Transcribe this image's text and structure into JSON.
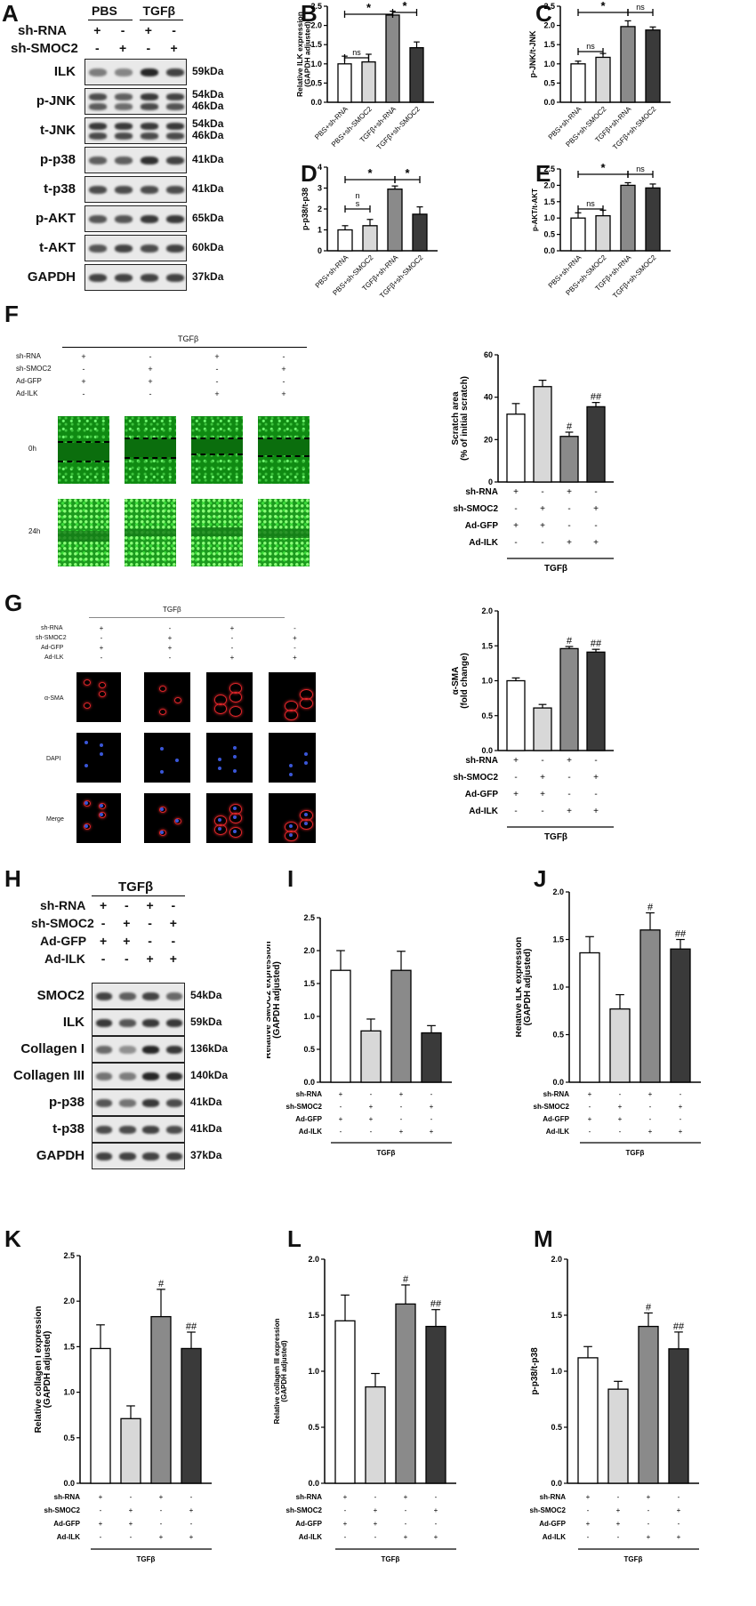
{
  "panel_labels": {
    "A": "A",
    "B": "B",
    "C": "C",
    "D": "D",
    "E": "E",
    "F": "F",
    "G": "G",
    "H": "H",
    "I": "I",
    "J": "J",
    "K": "K",
    "L": "L",
    "M": "M"
  },
  "panelA": {
    "groups": [
      "PBS",
      "TGFβ"
    ],
    "rows": [
      {
        "name": "sh-RNA",
        "signs": [
          "+",
          "-",
          "+",
          "-"
        ]
      },
      {
        "name": "sh-SMOC2",
        "signs": [
          "-",
          "+",
          "-",
          "+"
        ]
      }
    ],
    "blots": [
      {
        "name": "ILK",
        "kda": "59kDa",
        "kda2": ""
      },
      {
        "name": "p-JNK",
        "kda": "54kDa",
        "kda2": "46kDa"
      },
      {
        "name": "t-JNK",
        "kda": "54kDa",
        "kda2": "46kDa"
      },
      {
        "name": "p-p38",
        "kda": "41kDa",
        "kda2": ""
      },
      {
        "name": "t-p38",
        "kda": "41kDa",
        "kda2": ""
      },
      {
        "name": "p-AKT",
        "kda": "65kDa",
        "kda2": ""
      },
      {
        "name": "t-AKT",
        "kda": "60kDa",
        "kda2": ""
      },
      {
        "name": "GAPDH",
        "kda": "37kDa",
        "kda2": ""
      }
    ]
  },
  "panelF": {
    "title": "TGFβ",
    "rows": [
      {
        "name": "sh-RNA",
        "signs": [
          "+",
          "-",
          "+",
          "-"
        ]
      },
      {
        "name": "sh-SMOC2",
        "signs": [
          "-",
          "+",
          "-",
          "+"
        ]
      },
      {
        "name": "Ad-GFP",
        "signs": [
          "+",
          "+",
          "-",
          "-"
        ]
      },
      {
        "name": "Ad-ILK",
        "signs": [
          "-",
          "-",
          "+",
          "+"
        ]
      }
    ],
    "times": [
      "0h",
      "24h"
    ]
  },
  "panelG": {
    "title": "TGFβ",
    "rows": [
      {
        "name": "sh-RNA",
        "signs": [
          "+",
          "-",
          "+",
          "-"
        ]
      },
      {
        "name": "sh-SMOC2",
        "signs": [
          "-",
          "+",
          "-",
          "+"
        ]
      },
      {
        "name": "Ad-GFP",
        "signs": [
          "+",
          "+",
          "-",
          "-"
        ]
      },
      {
        "name": "Ad-ILK",
        "signs": [
          "-",
          "-",
          "+",
          "+"
        ]
      }
    ],
    "stains": [
      "α-SMA",
      "DAPI",
      "Merge"
    ]
  },
  "panelH": {
    "title": "TGFβ",
    "rows": [
      {
        "name": "sh-RNA",
        "signs": [
          "+",
          "-",
          "+",
          "-"
        ]
      },
      {
        "name": "sh-SMOC2",
        "signs": [
          "-",
          "+",
          "-",
          "+"
        ]
      },
      {
        "name": "Ad-GFP",
        "signs": [
          "+",
          "+",
          "-",
          "-"
        ]
      },
      {
        "name": "Ad-ILK",
        "signs": [
          "-",
          "-",
          "+",
          "+"
        ]
      }
    ],
    "blots": [
      {
        "name": "SMOC2",
        "kda": "54kDa"
      },
      {
        "name": "ILK",
        "kda": "59kDa"
      },
      {
        "name": "Collagen I",
        "kda": "136kDa"
      },
      {
        "name": "Collagen III",
        "kda": "140kDa"
      },
      {
        "name": "p-p38",
        "kda": "41kDa"
      },
      {
        "name": "t-p38",
        "kda": "41kDa"
      },
      {
        "name": "GAPDH",
        "kda": "37kDa"
      }
    ]
  },
  "chart_data": [
    {
      "id": "B",
      "type": "bar",
      "ylabel": "Relative ILK expression\n(GAPDH adjusted)",
      "ylim": [
        0,
        2.5
      ],
      "yticks": [
        0,
        0.5,
        1.0,
        1.5,
        2.0,
        2.5
      ],
      "categories": [
        "PBS+sh-RNA",
        "PBS+sh-SMOC2",
        "TGFβ+sh-RNA",
        "TGFβ+sh-SMOC2"
      ],
      "values": [
        1.0,
        1.05,
        2.27,
        1.42
      ],
      "errors": [
        0.2,
        0.2,
        0.1,
        0.15
      ],
      "annotations": [
        {
          "from": 0,
          "to": 1,
          "text": "ns"
        },
        {
          "from": 0,
          "to": 2,
          "text": "*"
        },
        {
          "from": 2,
          "to": 3,
          "text": "*"
        }
      ]
    },
    {
      "id": "C",
      "type": "bar",
      "ylabel": "p-JNK/t-JNK",
      "ylim": [
        0,
        2.5
      ],
      "yticks": [
        0,
        0.5,
        1.0,
        1.5,
        2.0,
        2.5
      ],
      "categories": [
        "PBS+sh-RNA",
        "PBS+sh-SMOC2",
        "TGFβ+sh-RNA",
        "TGFβ+sh-SMOC2"
      ],
      "values": [
        1.0,
        1.17,
        1.97,
        1.88
      ],
      "errors": [
        0.07,
        0.1,
        0.15,
        0.08
      ],
      "annotations": [
        {
          "from": 0,
          "to": 1,
          "text": "ns"
        },
        {
          "from": 0,
          "to": 2,
          "text": "*"
        },
        {
          "from": 2,
          "to": 3,
          "text": "ns"
        }
      ]
    },
    {
      "id": "D",
      "type": "bar",
      "ylabel": "p-p38/t-p38",
      "ylim": [
        0,
        4
      ],
      "yticks": [
        0,
        1,
        2,
        3,
        4
      ],
      "categories": [
        "PBS+sh-RNA",
        "PBS+sh-SMOC2",
        "TGFβ+sh-RNA",
        "TGFβ+sh-SMOC2"
      ],
      "values": [
        1.0,
        1.2,
        2.95,
        1.75
      ],
      "errors": [
        0.2,
        0.3,
        0.15,
        0.35
      ],
      "annotations": [
        {
          "from": 0,
          "to": 1,
          "text": "n\ns"
        },
        {
          "from": 0,
          "to": 2,
          "text": "*"
        },
        {
          "from": 2,
          "to": 3,
          "text": "*"
        }
      ]
    },
    {
      "id": "E",
      "type": "bar",
      "ylabel": "p-AKT/t-AKT",
      "ylim": [
        0,
        2.5
      ],
      "yticks": [
        0,
        0.5,
        1.0,
        1.5,
        2.0,
        2.5
      ],
      "categories": [
        "PBS+sh-RNA",
        "PBS+sh-SMOC2",
        "TGFβ+sh-RNA",
        "TGFβ+sh-SMOC2"
      ],
      "values": [
        1.0,
        1.07,
        2.0,
        1.92
      ],
      "errors": [
        0.16,
        0.17,
        0.08,
        0.12
      ],
      "annotations": [
        {
          "from": 0,
          "to": 1,
          "text": "ns"
        },
        {
          "from": 0,
          "to": 2,
          "text": "*"
        },
        {
          "from": 2,
          "to": 3,
          "text": "ns"
        }
      ]
    },
    {
      "id": "F",
      "type": "bar",
      "ylabel": "Scratch area\n(% of initial scratch)",
      "ylim": [
        0,
        60
      ],
      "yticks": [
        0,
        20,
        40,
        60
      ],
      "values": [
        32,
        45,
        21.5,
        35.5
      ],
      "errors": [
        5,
        3,
        2,
        2
      ],
      "marks": [
        "",
        "",
        "#",
        "##"
      ],
      "rows": [
        {
          "name": "sh-RNA",
          "signs": [
            "+",
            "-",
            "+",
            "-"
          ]
        },
        {
          "name": "sh-SMOC2",
          "signs": [
            "-",
            "+",
            "-",
            "+"
          ]
        },
        {
          "name": "Ad-GFP",
          "signs": [
            "+",
            "+",
            "-",
            "-"
          ]
        },
        {
          "name": "Ad-ILK",
          "signs": [
            "-",
            "-",
            "+",
            "+"
          ]
        }
      ],
      "group": "TGFβ"
    },
    {
      "id": "G",
      "type": "bar",
      "ylabel": "α-SMA\n(fold change)",
      "ylim": [
        0,
        2.0
      ],
      "yticks": [
        0,
        0.5,
        1.0,
        1.5,
        2.0
      ],
      "values": [
        1.0,
        0.61,
        1.46,
        1.41
      ],
      "errors": [
        0.04,
        0.05,
        0.03,
        0.04
      ],
      "marks": [
        "",
        "",
        "#",
        "##"
      ],
      "rows": [
        {
          "name": "sh-RNA",
          "signs": [
            "+",
            "-",
            "+",
            "-"
          ]
        },
        {
          "name": "sh-SMOC2",
          "signs": [
            "-",
            "+",
            "-",
            "+"
          ]
        },
        {
          "name": "Ad-GFP",
          "signs": [
            "+",
            "+",
            "-",
            "-"
          ]
        },
        {
          "name": "Ad-ILK",
          "signs": [
            "-",
            "-",
            "+",
            "+"
          ]
        }
      ],
      "group": "TGFβ"
    },
    {
      "id": "I",
      "type": "bar",
      "ylabel": "Relative SMOC2 expression\n(GAPDH adjusted)",
      "ylim": [
        0,
        2.5
      ],
      "yticks": [
        0,
        0.5,
        1.0,
        1.5,
        2.0,
        2.5
      ],
      "values": [
        1.7,
        0.78,
        1.7,
        0.75
      ],
      "errors": [
        0.3,
        0.18,
        0.29,
        0.11
      ],
      "marks": [
        "",
        "",
        "",
        ""
      ],
      "rows": [
        {
          "name": "sh-RNA",
          "signs": [
            "+",
            "-",
            "+",
            "-"
          ]
        },
        {
          "name": "sh-SMOC2",
          "signs": [
            "-",
            "+",
            "-",
            "+"
          ]
        },
        {
          "name": "Ad-GFP",
          "signs": [
            "+",
            "+",
            "-",
            "-"
          ]
        },
        {
          "name": "Ad-ILK",
          "signs": [
            "-",
            "-",
            "+",
            "+"
          ]
        }
      ],
      "group": "TGFβ"
    },
    {
      "id": "J",
      "type": "bar",
      "ylabel": "Relative ILK expression\n(GAPDH adjusted)",
      "ylim": [
        0,
        2.0
      ],
      "yticks": [
        0,
        0.5,
        1.0,
        1.5,
        2.0
      ],
      "values": [
        1.36,
        0.77,
        1.6,
        1.4
      ],
      "errors": [
        0.17,
        0.15,
        0.18,
        0.1
      ],
      "marks": [
        "",
        "",
        "#",
        "##"
      ],
      "rows": [
        {
          "name": "sh-RNA",
          "signs": [
            "+",
            "-",
            "+",
            "-"
          ]
        },
        {
          "name": "sh-SMOC2",
          "signs": [
            "-",
            "+",
            "-",
            "+"
          ]
        },
        {
          "name": "Ad-GFP",
          "signs": [
            "+",
            "+",
            "-",
            "-"
          ]
        },
        {
          "name": "Ad-ILK",
          "signs": [
            "-",
            "-",
            "+",
            "+"
          ]
        }
      ],
      "group": "TGFβ"
    },
    {
      "id": "K",
      "type": "bar",
      "ylabel": "Relative collagen I expression\n(GAPDH adjusted)",
      "ylim": [
        0,
        2.5
      ],
      "yticks": [
        0,
        0.5,
        1.0,
        1.5,
        2.0,
        2.5
      ],
      "values": [
        1.48,
        0.71,
        1.83,
        1.48
      ],
      "errors": [
        0.26,
        0.14,
        0.3,
        0.18
      ],
      "marks": [
        "",
        "",
        "#",
        "##"
      ],
      "rows": [
        {
          "name": "sh-RNA",
          "signs": [
            "+",
            "-",
            "+",
            "-"
          ]
        },
        {
          "name": "sh-SMOC2",
          "signs": [
            "-",
            "+",
            "-",
            "+"
          ]
        },
        {
          "name": "Ad-GFP",
          "signs": [
            "+",
            "+",
            "-",
            "-"
          ]
        },
        {
          "name": "Ad-ILK",
          "signs": [
            "-",
            "-",
            "+",
            "+"
          ]
        }
      ],
      "group": "TGFβ"
    },
    {
      "id": "L",
      "type": "bar",
      "ylabel": "Relative collagen III expression\n(GAPDH adjusted)",
      "ylim": [
        0,
        2.0
      ],
      "yticks": [
        0,
        0.5,
        1.0,
        1.5,
        2.0
      ],
      "values": [
        1.45,
        0.86,
        1.6,
        1.4
      ],
      "errors": [
        0.23,
        0.12,
        0.17,
        0.15
      ],
      "marks": [
        "",
        "",
        "#",
        "##"
      ],
      "rows": [
        {
          "name": "sh-RNA",
          "signs": [
            "+",
            "-",
            "+",
            "-"
          ]
        },
        {
          "name": "sh-SMOC2",
          "signs": [
            "-",
            "+",
            "-",
            "+"
          ]
        },
        {
          "name": "Ad-GFP",
          "signs": [
            "+",
            "+",
            "-",
            "-"
          ]
        },
        {
          "name": "Ad-ILK",
          "signs": [
            "-",
            "-",
            "+",
            "+"
          ]
        }
      ],
      "group": "TGFβ"
    },
    {
      "id": "M",
      "type": "bar",
      "ylabel": "p-p38/t-p38",
      "ylim": [
        0,
        2.0
      ],
      "yticks": [
        0,
        0.5,
        1.0,
        1.5,
        2.0
      ],
      "values": [
        1.12,
        0.84,
        1.4,
        1.2
      ],
      "errors": [
        0.1,
        0.07,
        0.12,
        0.15
      ],
      "marks": [
        "",
        "",
        "#",
        "##"
      ],
      "rows": [
        {
          "name": "sh-RNA",
          "signs": [
            "+",
            "-",
            "+",
            "-"
          ]
        },
        {
          "name": "sh-SMOC2",
          "signs": [
            "-",
            "+",
            "-",
            "+"
          ]
        },
        {
          "name": "Ad-GFP",
          "signs": [
            "+",
            "+",
            "-",
            "-"
          ]
        },
        {
          "name": "Ad-ILK",
          "signs": [
            "-",
            "-",
            "+",
            "+"
          ]
        }
      ],
      "group": "TGFβ"
    }
  ],
  "colors": {
    "bar_fills": [
      "#ffffff",
      "#d8d8d8",
      "#8a8a8a",
      "#3a3a3a"
    ],
    "axis": "#000000",
    "micro_red": "#e0262a",
    "micro_blue": "#3a56d8"
  }
}
